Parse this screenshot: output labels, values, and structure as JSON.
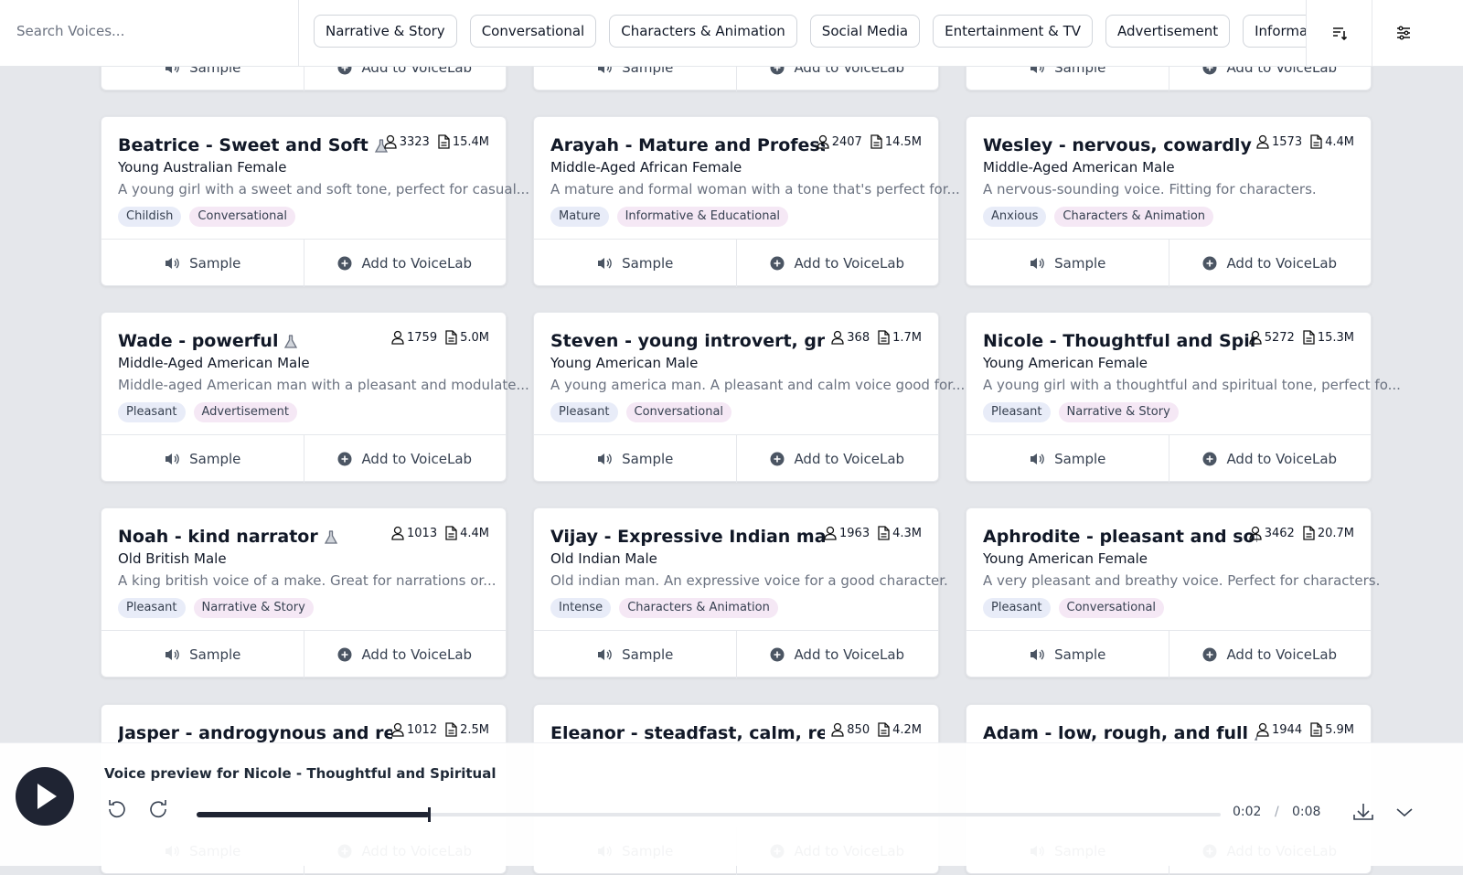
{
  "search": {
    "placeholder": "Search Voices..."
  },
  "filters": [
    "Narrative & Story",
    "Conversational",
    "Characters & Animation",
    "Social Media",
    "Entertainment & TV",
    "Advertisement",
    "Informative & Educational"
  ],
  "buttons": {
    "sample": "Sample",
    "add": "Add to VoiceLab"
  },
  "cards": [
    {
      "name": "Beatrice - Sweet and Soft",
      "experimental": true,
      "users": "3323",
      "chars": "15.4M",
      "subtitle": "Young Australian Female",
      "description": "A young girl with a sweet and soft tone, perfect for casual...",
      "tags": [
        "Childish",
        "Conversational"
      ]
    },
    {
      "name": "Arayah - Mature and Professional",
      "experimental": false,
      "users": "2407",
      "chars": "14.5M",
      "subtitle": "Middle-Aged African Female",
      "description": "A mature and formal woman with a tone that's perfect for...",
      "tags": [
        "Mature",
        "Informative & Educational"
      ]
    },
    {
      "name": "Wesley - nervous, cowardly fellow",
      "experimental": false,
      "users": "1573",
      "chars": "4.4M",
      "subtitle": "Middle-Aged American Male",
      "description": "A nervous-sounding voice. Fitting for characters.",
      "tags": [
        "Anxious",
        "Characters & Animation"
      ]
    },
    {
      "name": "Wade - powerful",
      "experimental": true,
      "users": "1759",
      "chars": "5.0M",
      "subtitle": "Middle-Aged American Male",
      "description": "Middle-aged American man with a pleasant and modulate...",
      "tags": [
        "Pleasant",
        "Advertisement"
      ]
    },
    {
      "name": "Steven - young introvert, great cha",
      "experimental": false,
      "users": "368",
      "chars": "1.7M",
      "subtitle": "Young American Male",
      "description": "A young america man. A pleasant and calm voice good for...",
      "tags": [
        "Pleasant",
        "Conversational"
      ]
    },
    {
      "name": "Nicole - Thoughtful and Spiritual",
      "experimental": false,
      "users": "5272",
      "chars": "15.3M",
      "subtitle": "Young American Female",
      "description": "A young girl with a thoughtful and spiritual tone, perfect fo...",
      "tags": [
        "Pleasant",
        "Narrative & Story"
      ]
    },
    {
      "name": "Noah - kind narrator",
      "experimental": true,
      "users": "1013",
      "chars": "4.4M",
      "subtitle": "Old British Male",
      "description": "A king british voice of a make. Great for narrations or...",
      "tags": [
        "Pleasant",
        "Narrative & Story"
      ]
    },
    {
      "name": "Vijay - Expressive Indian male",
      "experimental": true,
      "users": "1963",
      "chars": "4.3M",
      "subtitle": "Old Indian Male",
      "description": "Old indian man. An expressive voice for a good character.",
      "tags": [
        "Intense",
        "Characters & Animation"
      ]
    },
    {
      "name": "Aphrodite - pleasant and softspo",
      "experimental": false,
      "users": "3462",
      "chars": "20.7M",
      "subtitle": "Young American Female",
      "description": "A very pleasant and breathy voice. Perfect for characters.",
      "tags": [
        "Pleasant",
        "Conversational"
      ]
    },
    {
      "name": "Jasper - androgynous and rebellio",
      "experimental": false,
      "users": "1012",
      "chars": "2.5M"
    },
    {
      "name": "Eleanor - steadfast, calm, relaxing",
      "experimental": false,
      "users": "850",
      "chars": "4.2M"
    },
    {
      "name": "Adam - low, rough, and full",
      "experimental": true,
      "users": "1944",
      "chars": "5.9M"
    }
  ],
  "player": {
    "title": "Voice preview for Nicole - Thoughtful and Spiritual",
    "current": "0:02",
    "separator": "/",
    "duration": "0:08"
  }
}
